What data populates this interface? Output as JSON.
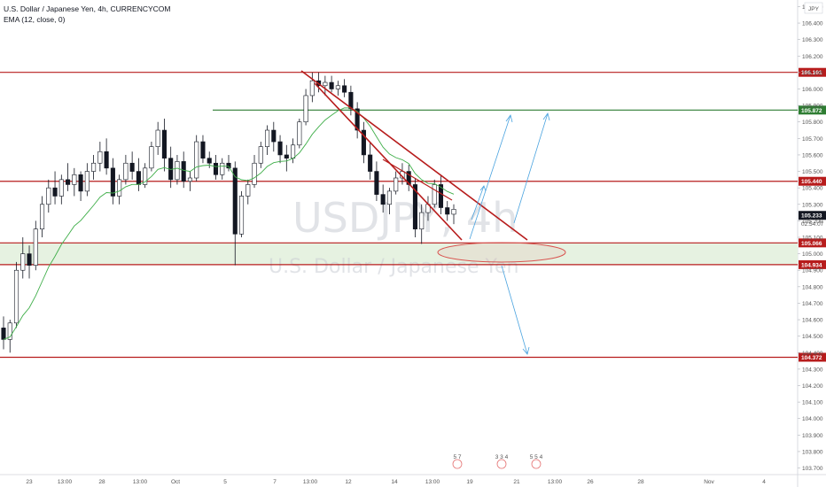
{
  "header": {
    "symbol_line": "U.S. Dollar / Japanese Yen, 4h, CURRENCYCOM",
    "indicator_line": "EMA (12, close, 0)"
  },
  "watermark": {
    "symbol": "USDJPY, 4h",
    "name": "U.S. Dollar / Japanese Yen"
  },
  "currency_tag": "JPY",
  "countdown": "02:54:07",
  "colors": {
    "up": "#ffffff",
    "down": "#131722",
    "ema": "#3fae49",
    "resistance": "#b71c1c",
    "support_zone": "#e6f2e1",
    "green_line": "#2e7d32",
    "arrows": "#4aa3df"
  },
  "chart_data": {
    "type": "candlestick",
    "title": "U.S. Dollar / Japanese Yen, 4h, CURRENCYCOM",
    "ylim": [
      103.66,
      106.54
    ],
    "y_ticks": [
      "106.500",
      "106.400",
      "106.300",
      "106.200",
      "106.100",
      "106.000",
      "105.900",
      "105.800",
      "105.700",
      "105.600",
      "105.500",
      "105.400",
      "105.300",
      "105.200",
      "105.100",
      "105.000",
      "104.900",
      "104.800",
      "104.700",
      "104.600",
      "104.500",
      "104.400",
      "104.300",
      "104.200",
      "104.100",
      "104.000",
      "103.900",
      "103.800",
      "103.700"
    ],
    "x_ticks": [
      "23",
      "13:00",
      "28",
      "13:00",
      "Oct",
      "5",
      "7",
      "13:00",
      "12",
      "14",
      "13:00",
      "19",
      "21",
      "13:00",
      "26",
      "28",
      "Nov",
      "4"
    ],
    "candles": [
      [
        104.55,
        104.62,
        104.42,
        104.48
      ],
      [
        104.48,
        104.6,
        104.4,
        104.58
      ],
      [
        104.58,
        104.95,
        104.55,
        104.9
      ],
      [
        104.9,
        105.1,
        104.85,
        105.0
      ],
      [
        105.0,
        105.05,
        104.85,
        104.93
      ],
      [
        104.93,
        105.2,
        104.9,
        105.15
      ],
      [
        105.15,
        105.35,
        105.1,
        105.3
      ],
      [
        105.3,
        105.45,
        105.25,
        105.4
      ],
      [
        105.4,
        105.5,
        105.3,
        105.35
      ],
      [
        105.35,
        105.48,
        105.3,
        105.45
      ],
      [
        105.45,
        105.55,
        105.38,
        105.42
      ],
      [
        105.42,
        105.52,
        105.35,
        105.48
      ],
      [
        105.48,
        105.5,
        105.32,
        105.38
      ],
      [
        105.38,
        105.55,
        105.35,
        105.5
      ],
      [
        105.5,
        105.6,
        105.45,
        105.55
      ],
      [
        105.55,
        105.68,
        105.5,
        105.62
      ],
      [
        105.62,
        105.7,
        105.48,
        105.52
      ],
      [
        105.52,
        105.58,
        105.3,
        105.35
      ],
      [
        105.35,
        105.48,
        105.3,
        105.45
      ],
      [
        105.45,
        105.6,
        105.42,
        105.55
      ],
      [
        105.55,
        105.62,
        105.45,
        105.5
      ],
      [
        105.5,
        105.58,
        105.38,
        105.42
      ],
      [
        105.42,
        105.55,
        105.4,
        105.52
      ],
      [
        105.52,
        105.68,
        105.5,
        105.65
      ],
      [
        105.65,
        105.8,
        105.6,
        105.75
      ],
      [
        105.75,
        105.82,
        105.5,
        105.58
      ],
      [
        105.58,
        105.65,
        105.4,
        105.45
      ],
      [
        105.45,
        105.6,
        105.42,
        105.56
      ],
      [
        105.56,
        105.62,
        105.4,
        105.44
      ],
      [
        105.44,
        105.5,
        105.38,
        105.46
      ],
      [
        105.46,
        105.72,
        105.44,
        105.68
      ],
      [
        105.68,
        105.72,
        105.55,
        105.58
      ],
      [
        105.58,
        105.62,
        105.52,
        105.55
      ],
      [
        105.55,
        105.6,
        105.45,
        105.48
      ],
      [
        105.48,
        105.58,
        105.45,
        105.55
      ],
      [
        105.55,
        105.6,
        105.5,
        105.52
      ],
      [
        105.52,
        105.56,
        104.93,
        105.12
      ],
      [
        105.12,
        105.38,
        105.1,
        105.35
      ],
      [
        105.35,
        105.45,
        105.3,
        105.42
      ],
      [
        105.42,
        105.6,
        105.4,
        105.55
      ],
      [
        105.55,
        105.68,
        105.52,
        105.65
      ],
      [
        105.65,
        105.78,
        105.6,
        105.75
      ],
      [
        105.75,
        105.8,
        105.62,
        105.68
      ],
      [
        105.68,
        105.72,
        105.55,
        105.6
      ],
      [
        105.6,
        105.66,
        105.5,
        105.58
      ],
      [
        105.58,
        105.7,
        105.55,
        105.66
      ],
      [
        105.66,
        105.82,
        105.64,
        105.8
      ],
      [
        105.8,
        106.0,
        105.78,
        105.96
      ],
      [
        105.96,
        106.1,
        105.92,
        106.05
      ],
      [
        106.05,
        106.1,
        105.98,
        106.02
      ],
      [
        106.02,
        106.08,
        105.96,
        106.04
      ],
      [
        106.04,
        106.08,
        105.98,
        106.0
      ],
      [
        106.0,
        106.05,
        105.96,
        106.02
      ],
      [
        106.02,
        106.06,
        105.95,
        105.98
      ],
      [
        105.98,
        106.02,
        105.84,
        105.88
      ],
      [
        105.88,
        105.92,
        105.7,
        105.75
      ],
      [
        105.75,
        105.8,
        105.55,
        105.6
      ],
      [
        105.6,
        105.68,
        105.45,
        105.5
      ],
      [
        105.5,
        105.56,
        105.32,
        105.36
      ],
      [
        105.36,
        105.42,
        105.25,
        105.3
      ],
      [
        105.3,
        105.4,
        105.24,
        105.38
      ],
      [
        105.38,
        105.5,
        105.36,
        105.46
      ],
      [
        105.46,
        105.55,
        105.42,
        105.5
      ],
      [
        105.5,
        105.54,
        105.38,
        105.42
      ],
      [
        105.42,
        105.46,
        105.1,
        105.15
      ],
      [
        105.15,
        105.3,
        105.06,
        105.25
      ],
      [
        105.25,
        105.35,
        105.2,
        105.3
      ],
      [
        105.3,
        105.45,
        105.28,
        105.42
      ],
      [
        105.42,
        105.48,
        105.24,
        105.28
      ],
      [
        105.28,
        105.32,
        105.2,
        105.24
      ],
      [
        105.24,
        105.3,
        105.18,
        105.27
      ]
    ],
    "ema_label": "EMA (12, close, 0)",
    "levels": [
      {
        "value": 106.101,
        "label": "106.101",
        "color": "#b71c1c"
      },
      {
        "value": 105.872,
        "label": "105.872",
        "color": "#2e7d32"
      },
      {
        "value": 105.44,
        "label": "105.440",
        "color": "#b71c1c"
      },
      {
        "value": 105.233,
        "label": "105.233",
        "color": "#131722"
      },
      {
        "value": 105.066,
        "label": "105.066",
        "color": "#b71c1c"
      },
      {
        "value": 104.934,
        "label": "104.934",
        "color": "#b71c1c"
      },
      {
        "value": 104.372,
        "label": "104.372",
        "color": "#b71c1c"
      }
    ],
    "support_zone": [
      104.934,
      105.066
    ],
    "event_markers": [
      "5 7",
      "3 3 4",
      "5 5 4"
    ]
  }
}
